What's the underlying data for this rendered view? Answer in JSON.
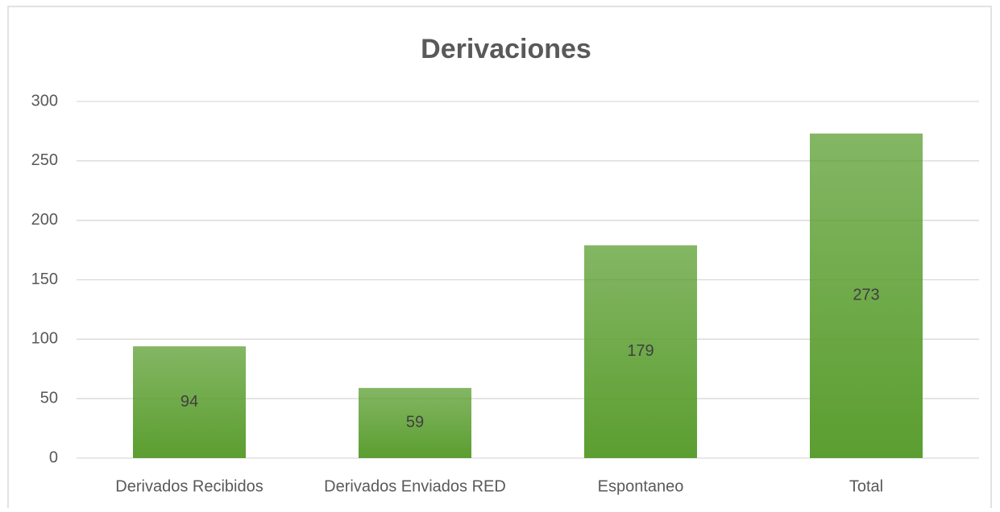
{
  "chart_data": {
    "type": "bar",
    "title": "Derivaciones",
    "categories": [
      "Derivados Recibidos",
      "Derivados Enviados RED",
      "Espontaneo",
      "Total"
    ],
    "values": [
      94,
      59,
      179,
      273
    ],
    "color": "#5b9e30",
    "ylim": [
      0,
      300
    ],
    "yticks": [
      0,
      50,
      100,
      150,
      200,
      250,
      300
    ],
    "grid": true,
    "data_labels": true
  }
}
